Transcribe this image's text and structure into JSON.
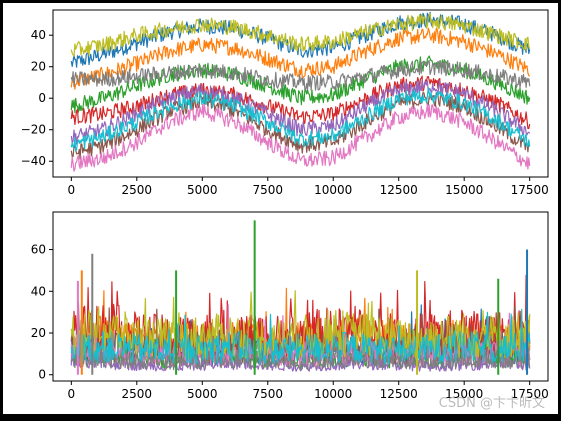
{
  "figure": {
    "background": "#ffffff",
    "frame": "#000000"
  },
  "watermark": "CSDN @卞卞昕文",
  "palette": [
    "#1f77b4",
    "#ff7f0e",
    "#2ca02c",
    "#d62728",
    "#9467bd",
    "#8c564b",
    "#e377c2",
    "#7f7f7f",
    "#bcbd22",
    "#17becf"
  ],
  "chart_data": [
    {
      "type": "line",
      "title": "",
      "xlabel": "",
      "ylabel": "",
      "xlim": [
        -700,
        18200
      ],
      "ylim": [
        -50,
        56
      ],
      "x_ticks": [
        0,
        2500,
        5000,
        7500,
        10000,
        12500,
        15000,
        17500
      ],
      "y_ticks": [
        -40,
        -20,
        0,
        20,
        40
      ],
      "grid": false,
      "legend": "none",
      "x_range": [
        0,
        17500
      ],
      "series_count": 10,
      "x": [
        0,
        1250,
        2500,
        3750,
        5000,
        6250,
        7500,
        8750,
        10000,
        11250,
        12500,
        13750,
        15000,
        16250,
        17500
      ],
      "series": [
        {
          "values": [
            22,
            28,
            35,
            42,
            46,
            44,
            38,
            30,
            32,
            40,
            48,
            50,
            47,
            40,
            30
          ]
        },
        {
          "values": [
            10,
            15,
            22,
            30,
            34,
            32,
            25,
            18,
            20,
            30,
            38,
            40,
            36,
            28,
            18
          ]
        },
        {
          "values": [
            -5,
            0,
            8,
            15,
            18,
            15,
            8,
            0,
            2,
            12,
            20,
            22,
            18,
            10,
            0
          ]
        },
        {
          "values": [
            -12,
            -10,
            -5,
            2,
            5,
            2,
            -5,
            -12,
            -10,
            0,
            8,
            10,
            5,
            -3,
            -15
          ]
        },
        {
          "values": [
            -25,
            -20,
            -10,
            0,
            5,
            0,
            -10,
            -20,
            -18,
            -5,
            5,
            8,
            3,
            -8,
            -22
          ]
        },
        {
          "values": [
            -35,
            -30,
            -20,
            -8,
            -2,
            -8,
            -20,
            -30,
            -28,
            -15,
            -3,
            0,
            -5,
            -18,
            -32
          ]
        },
        {
          "values": [
            -42,
            -38,
            -28,
            -15,
            -8,
            -15,
            -28,
            -40,
            -38,
            -25,
            -12,
            -8,
            -15,
            -28,
            -42
          ]
        },
        {
          "values": [
            12,
            12,
            14,
            16,
            18,
            16,
            12,
            10,
            10,
            14,
            18,
            20,
            18,
            14,
            10
          ]
        },
        {
          "values": [
            30,
            34,
            40,
            44,
            47,
            45,
            40,
            34,
            36,
            42,
            47,
            49,
            46,
            40,
            34
          ]
        },
        {
          "values": [
            -30,
            -24,
            -15,
            -5,
            0,
            -5,
            -15,
            -26,
            -24,
            -12,
            0,
            2,
            -3,
            -14,
            -28
          ]
        }
      ]
    },
    {
      "type": "line",
      "title": "",
      "xlabel": "",
      "ylabel": "",
      "xlim": [
        -700,
        18200
      ],
      "ylim": [
        -3,
        78
      ],
      "x_ticks": [
        0,
        2500,
        5000,
        7500,
        10000,
        12500,
        15000,
        17500
      ],
      "y_ticks": [
        0,
        20,
        40,
        60
      ],
      "grid": false,
      "legend": "none",
      "x_range": [
        0,
        17500
      ],
      "series_count": 10,
      "x": [
        0,
        1250,
        2500,
        3750,
        5000,
        6250,
        7500,
        8750,
        10000,
        11250,
        12500,
        13750,
        15000,
        16250,
        17500
      ],
      "series": [
        {
          "values": [
            12,
            14,
            12,
            10,
            11,
            12,
            10,
            11,
            12,
            11,
            10,
            12,
            13,
            11,
            12
          ]
        },
        {
          "values": [
            18,
            20,
            17,
            16,
            17,
            18,
            16,
            17,
            19,
            18,
            16,
            17,
            18,
            17,
            18
          ]
        },
        {
          "values": [
            8,
            9,
            8,
            7,
            8,
            9,
            8,
            7,
            8,
            9,
            8,
            7,
            8,
            9,
            8
          ]
        },
        {
          "values": [
            22,
            24,
            20,
            19,
            20,
            21,
            19,
            20,
            22,
            21,
            19,
            20,
            21,
            20,
            21
          ]
        },
        {
          "values": [
            5,
            6,
            5,
            4,
            5,
            6,
            5,
            4,
            5,
            6,
            5,
            4,
            5,
            6,
            5
          ]
        },
        {
          "values": [
            15,
            16,
            14,
            13,
            14,
            15,
            13,
            14,
            15,
            14,
            13,
            14,
            15,
            14,
            15
          ]
        },
        {
          "values": [
            10,
            11,
            10,
            9,
            10,
            11,
            10,
            9,
            10,
            11,
            10,
            9,
            10,
            11,
            10
          ]
        },
        {
          "values": [
            7,
            8,
            7,
            6,
            7,
            8,
            7,
            6,
            7,
            8,
            7,
            6,
            7,
            8,
            7
          ]
        },
        {
          "values": [
            20,
            22,
            19,
            18,
            19,
            20,
            18,
            19,
            21,
            20,
            18,
            19,
            20,
            19,
            20
          ]
        },
        {
          "values": [
            13,
            14,
            13,
            12,
            13,
            14,
            12,
            13,
            14,
            13,
            12,
            13,
            14,
            13,
            14
          ]
        }
      ],
      "spikes": [
        {
          "x": 7000,
          "value": 74,
          "series": 2
        },
        {
          "x": 17400,
          "value": 60,
          "series": 0
        },
        {
          "x": 800,
          "value": 58,
          "series": 7
        },
        {
          "x": 13200,
          "value": 50,
          "series": 8
        },
        {
          "x": 4000,
          "value": 50,
          "series": 2
        },
        {
          "x": 400,
          "value": 50,
          "series": 1
        },
        {
          "x": 16300,
          "value": 46,
          "series": 2
        },
        {
          "x": 250,
          "value": 45,
          "series": 6
        }
      ]
    }
  ]
}
